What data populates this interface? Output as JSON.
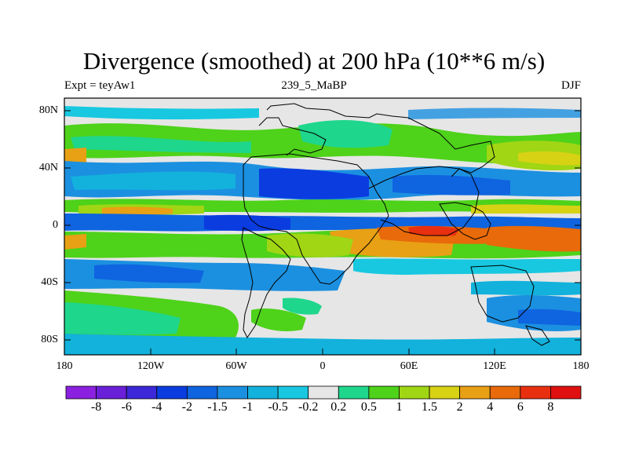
{
  "title": "Divergence (smoothed) at 200 hPa (10**6 m/s)",
  "subtitle_left": "Expt = teyAw1",
  "subtitle_center": "239_5_MaBP",
  "subtitle_right": "DJF",
  "y_axis_labels": [
    "80N",
    "40N",
    "0",
    "40S",
    "80S"
  ],
  "x_axis_labels": [
    "180",
    "120W",
    "60W",
    "0",
    "60E",
    "120E",
    "180"
  ],
  "colorbar": {
    "labels": [
      "-8",
      "-6",
      "-4",
      "-2",
      "-1.5",
      "-1",
      "-0.5",
      "-0.2",
      "0.2",
      "0.5",
      "1",
      "1.5",
      "2",
      "4",
      "6",
      "8"
    ],
    "colors": [
      "#8c20e0",
      "#6a1fd8",
      "#3c28d8",
      "#0a3ce0",
      "#0f64e0",
      "#1c90e0",
      "#12b2dc",
      "#18c8e0",
      "#e6e6e6",
      "#1ed68c",
      "#4ed21a",
      "#a0d614",
      "#d8d214",
      "#e8a014",
      "#e86a0a",
      "#e83010",
      "#e01010"
    ]
  },
  "colors": {
    "land_outline": "#000000",
    "background_field": "#e6e6e6"
  }
}
